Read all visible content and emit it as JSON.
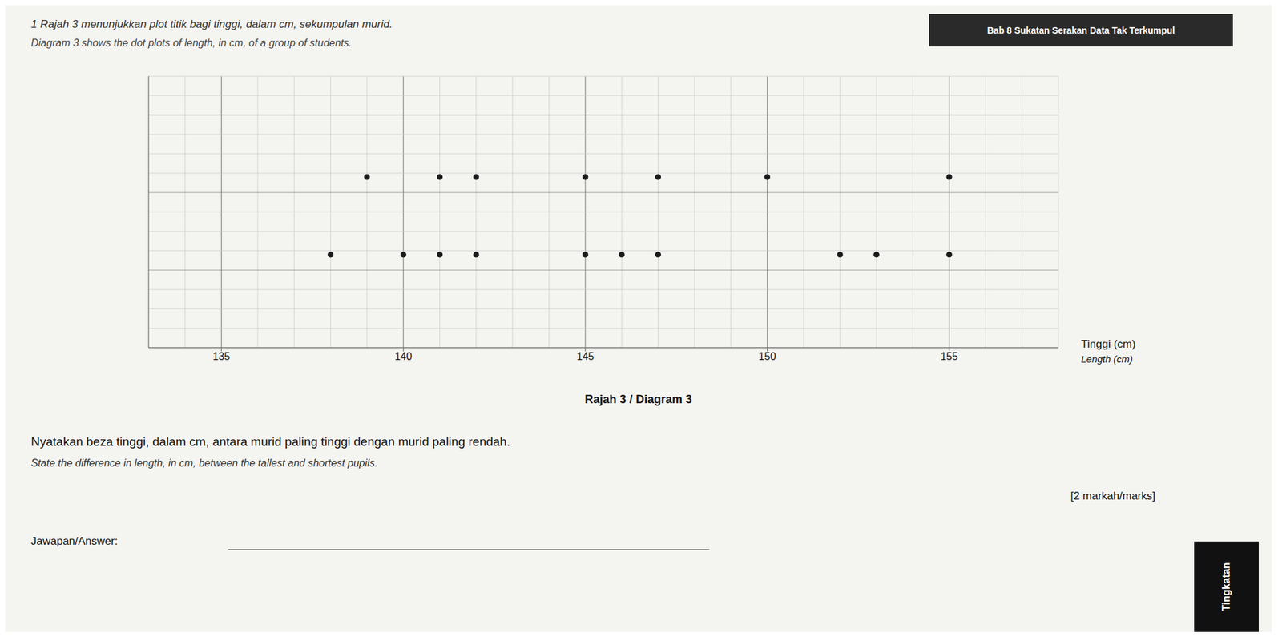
{
  "chart_data": {
    "type": "scatter",
    "title": "1 Rajah 3 menunjukkan plot titik bagi tinggi, dalam cm, sekumpulan murid.",
    "subtitle": "Diagram 3 shows the dot plots of length, in cm, of a group of students.",
    "xlabel": "Tinggi (cm)",
    "annotations": [
      "Length (cm)",
      "Rajah 3 / Diagram 3",
      "Nyatakan beza tinggi, dalam cm, antara murid paling tinggi dengan murid paling rendah.",
      "State the difference in length, in cm, between the tallest and shortest pupils.",
      "[2 markah/marks]",
      "Jawapan/Answer:",
      "Bab 8 Sukatan Serakan Data Tak Terkumpul",
      "Tingkatan"
    ],
    "color": "#1a1a1a",
    "series": [
      {
        "x": [
          139,
          141,
          142,
          145,
          147,
          150,
          155
        ],
        "values": [
          2.2,
          2.2,
          2.2,
          2.2,
          2.2,
          2.2,
          2.2
        ]
      },
      {
        "x": [
          138,
          140,
          141,
          142,
          145,
          146,
          147,
          152,
          153,
          155
        ],
        "values": [
          1.2,
          1.2,
          1.2,
          1.2,
          1.2,
          1.2,
          1.2,
          1.2,
          1.2,
          1.2
        ]
      }
    ],
    "xlim": [
      133,
      158
    ],
    "xticks": [
      135,
      140,
      145,
      150,
      155
    ],
    "ylim": [
      0,
      3.5
    ],
    "tick_labels": "x",
    "grid": true
  }
}
